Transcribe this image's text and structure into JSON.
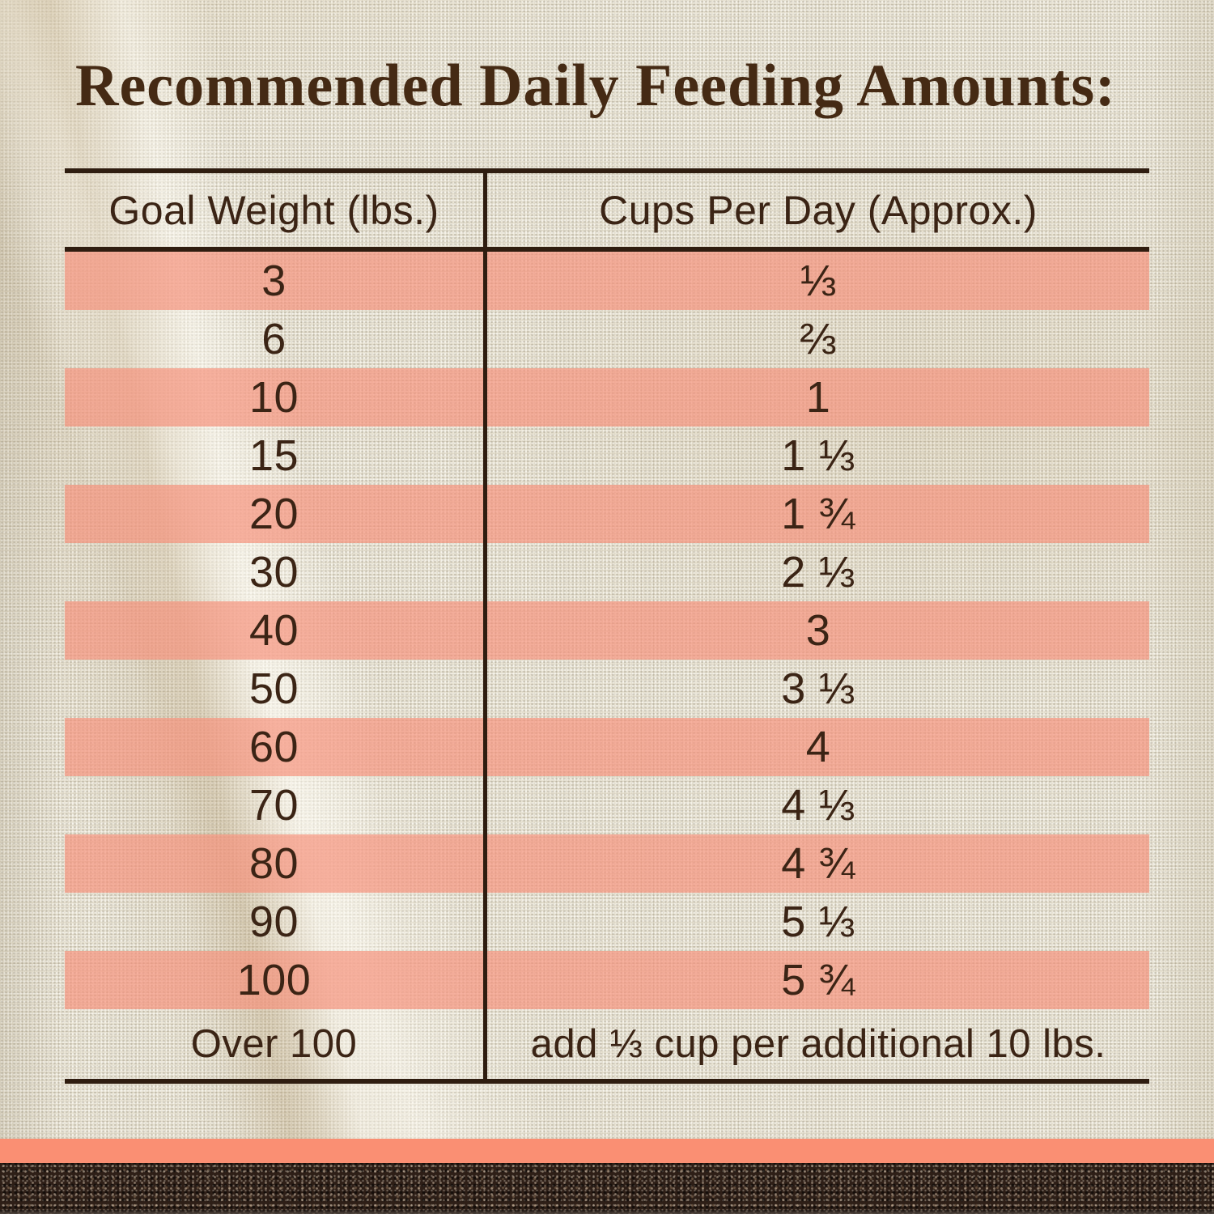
{
  "page": {
    "title": "Recommended Daily Feeding Amounts:"
  },
  "table": {
    "headers": {
      "goal_weight": "Goal Weight (lbs.)",
      "cups_per_day": "Cups Per Day (Approx.)"
    },
    "rows": [
      {
        "weight": "3",
        "cups": "⅓",
        "highlight": true
      },
      {
        "weight": "6",
        "cups": "⅔",
        "highlight": false
      },
      {
        "weight": "10",
        "cups": "1",
        "highlight": true
      },
      {
        "weight": "15",
        "cups": "1 ⅓",
        "highlight": false
      },
      {
        "weight": "20",
        "cups": "1 ¾",
        "highlight": true
      },
      {
        "weight": "30",
        "cups": "2 ⅓",
        "highlight": false
      },
      {
        "weight": "40",
        "cups": "3",
        "highlight": true
      },
      {
        "weight": "50",
        "cups": "3 ⅓",
        "highlight": false
      },
      {
        "weight": "60",
        "cups": "4",
        "highlight": true
      },
      {
        "weight": "70",
        "cups": "4 ⅓",
        "highlight": false
      },
      {
        "weight": "80",
        "cups": "4 ¾",
        "highlight": true
      },
      {
        "weight": "90",
        "cups": "5 ⅓",
        "highlight": false
      },
      {
        "weight": "100",
        "cups": "5 ¾",
        "highlight": true
      },
      {
        "weight": "Over 100",
        "cups": "add ⅓ cup per additional 10 lbs.",
        "highlight": false
      }
    ]
  },
  "chart_data": {
    "type": "table",
    "title": "Recommended Daily Feeding Amounts:",
    "columns": [
      "Goal Weight (lbs.)",
      "Cups Per Day (Approx.)"
    ],
    "goal_weights_lbs": [
      3,
      6,
      10,
      15,
      20,
      30,
      40,
      50,
      60,
      70,
      80,
      90,
      100
    ],
    "cups_per_day_display": [
      "⅓",
      "⅔",
      "1",
      "1 ⅓",
      "1 ¾",
      "2 ⅓",
      "3",
      "3 ⅓",
      "4",
      "4 ⅓",
      "4 ¾",
      "5 ⅓",
      "5 ¾"
    ],
    "cups_per_day_numeric": [
      0.33,
      0.67,
      1,
      1.33,
      1.75,
      2.33,
      3,
      3.33,
      4,
      4.33,
      4.75,
      5.33,
      5.75
    ],
    "note_row": {
      "weight": "Over 100",
      "cups": "add ⅓ cup per additional 10 lbs."
    },
    "layout_hints": {
      "striped_rows": "alternating starting with first data row",
      "divider": "single vertical rule between columns"
    }
  },
  "colors": {
    "stripe_pink": "rgba(246,145,122,0.68)",
    "accent_salmon": "#fa8f73",
    "line_brown": "#2f1d10",
    "text_brown": "#3b2415",
    "title_brown": "#452a14",
    "fabric_cream": "#eae5d6",
    "soil_brown": "#2e1f17"
  }
}
